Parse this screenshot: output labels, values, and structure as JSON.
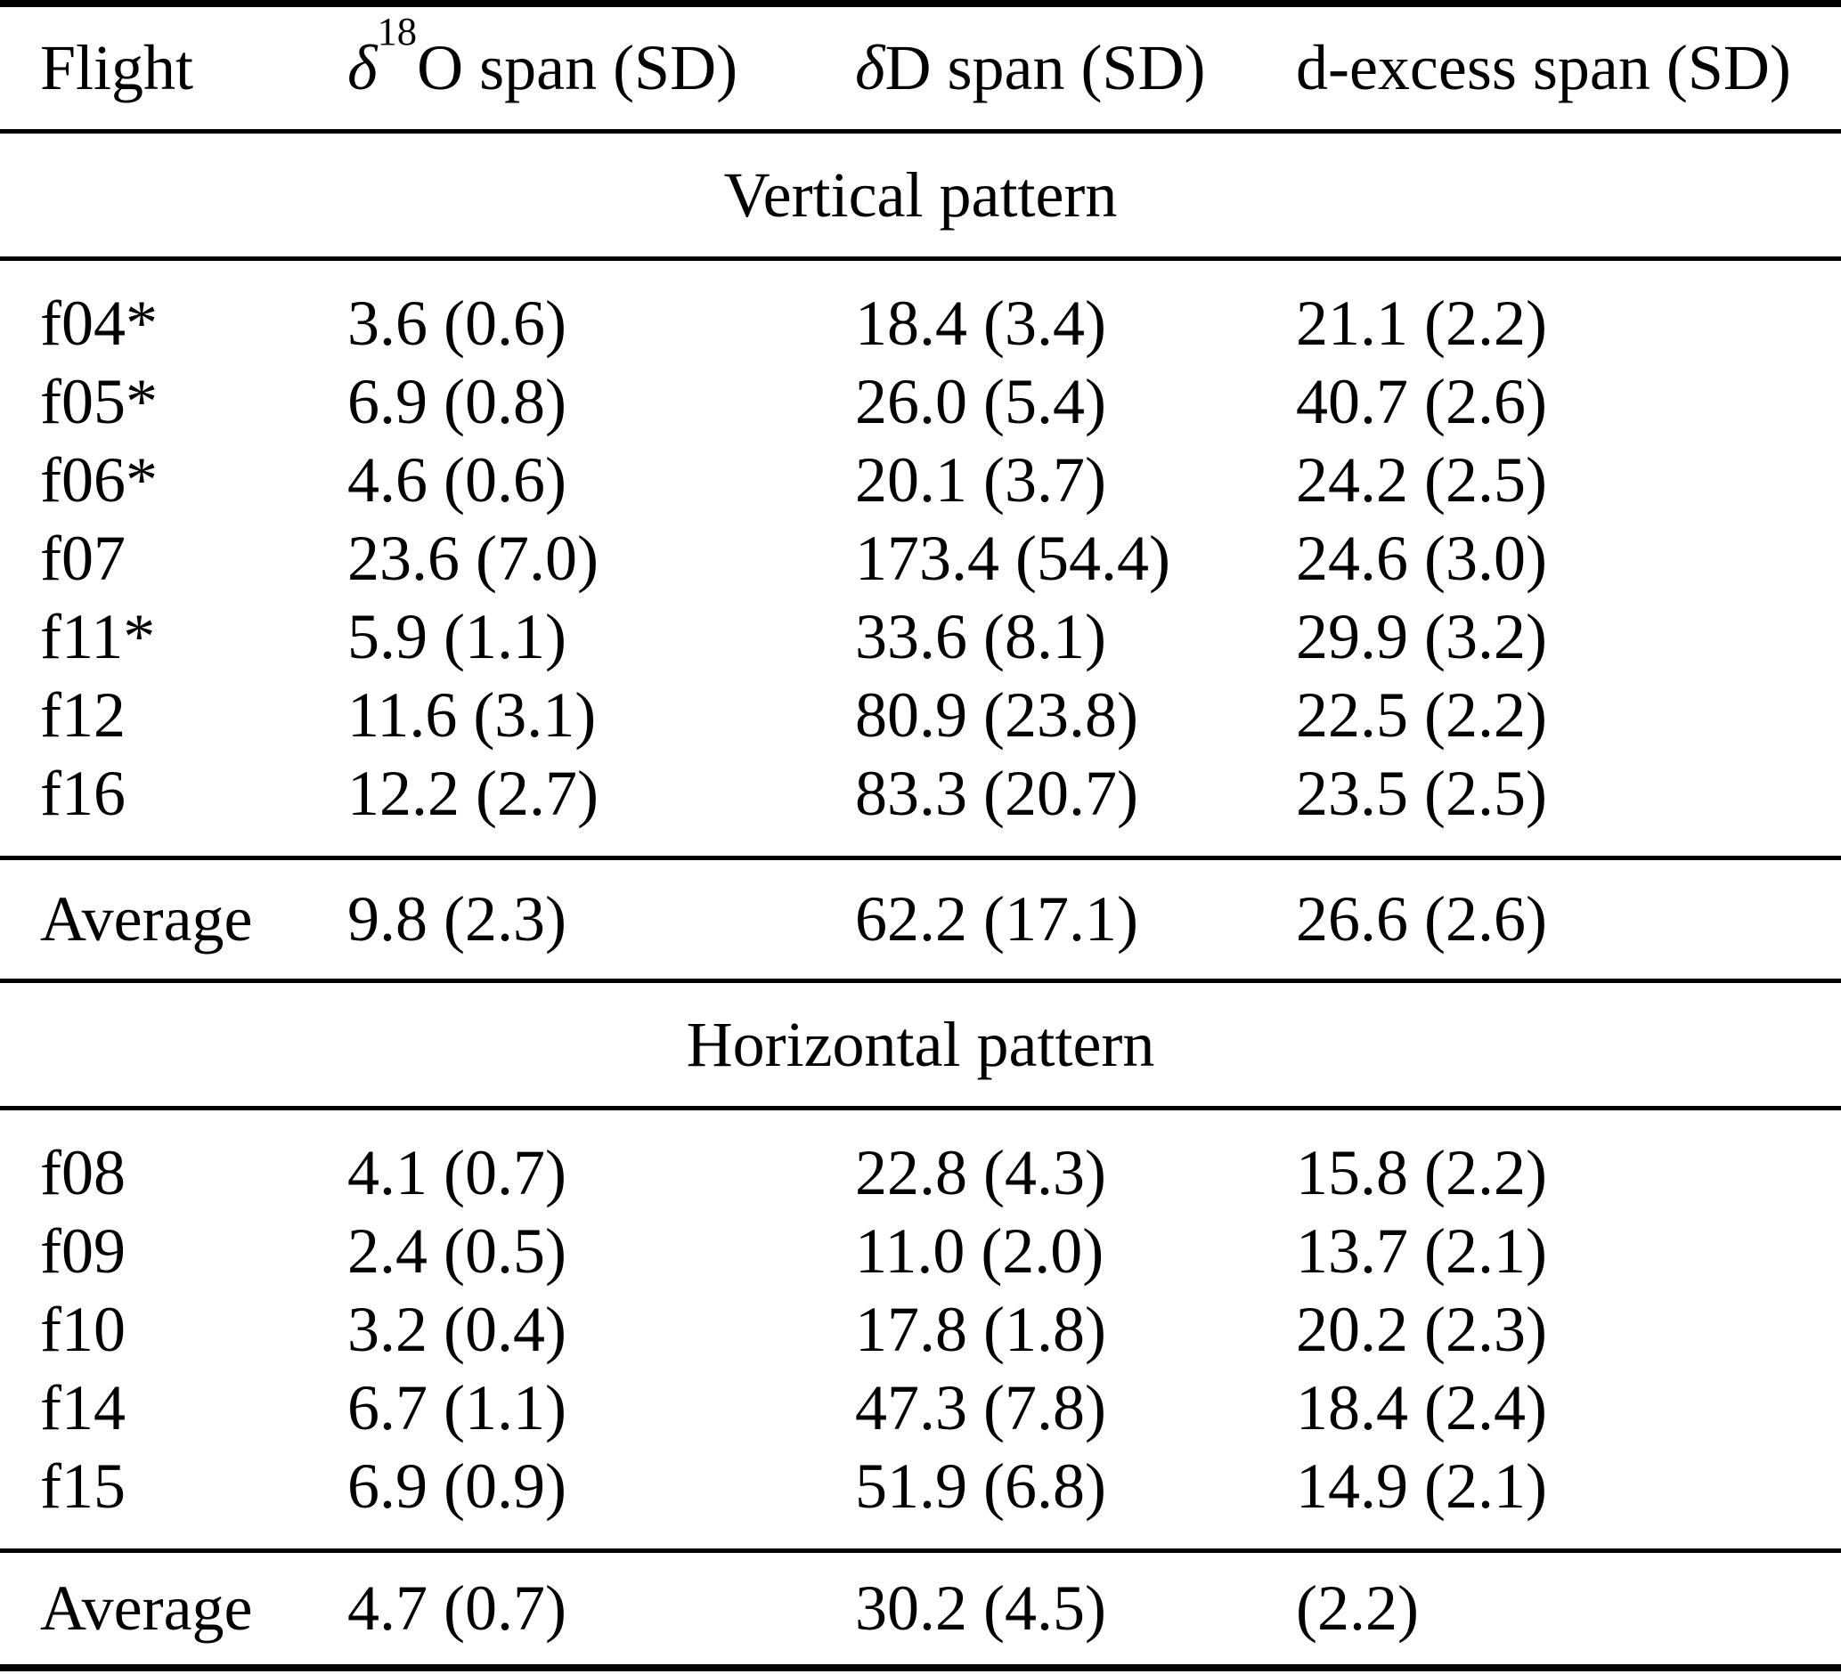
{
  "table": {
    "columns": {
      "flight": "Flight",
      "d18o": {
        "delta": "δ",
        "sup": "18",
        "rest": "O span (SD)"
      },
      "dd": {
        "delta": "δ",
        "rest": "D span (SD)"
      },
      "dexcess": "d-excess span (SD)"
    },
    "sections": [
      {
        "title": "Vertical pattern",
        "rows": [
          {
            "flight": "f04*",
            "d18o": "3.6 (0.6)",
            "dd": "18.4 (3.4)",
            "dexcess": "21.1 (2.2)"
          },
          {
            "flight": "f05*",
            "d18o": "6.9 (0.8)",
            "dd": "26.0 (5.4)",
            "dexcess": "40.7 (2.6)"
          },
          {
            "flight": "f06*",
            "d18o": "4.6 (0.6)",
            "dd": "20.1 (3.7)",
            "dexcess": "24.2 (2.5)"
          },
          {
            "flight": "f07",
            "d18o": "23.6 (7.0)",
            "dd": "173.4 (54.4)",
            "dexcess": "24.6 (3.0)"
          },
          {
            "flight": "f11*",
            "d18o": "5.9 (1.1)",
            "dd": "33.6 (8.1)",
            "dexcess": "29.9 (3.2)"
          },
          {
            "flight": "f12",
            "d18o": "11.6 (3.1)",
            "dd": "80.9 (23.8)",
            "dexcess": "22.5 (2.2)"
          },
          {
            "flight": "f16",
            "d18o": "12.2 (2.7)",
            "dd": "83.3 (20.7)",
            "dexcess": "23.5 (2.5)"
          }
        ],
        "average": {
          "label": "Average",
          "d18o": "9.8 (2.3)",
          "dd": "62.2 (17.1)",
          "dexcess": "26.6 (2.6)"
        }
      },
      {
        "title": "Horizontal pattern",
        "rows": [
          {
            "flight": "f08",
            "d18o": "4.1 (0.7)",
            "dd": "22.8 (4.3)",
            "dexcess": "15.8 (2.2)"
          },
          {
            "flight": "f09",
            "d18o": "2.4 (0.5)",
            "dd": "11.0 (2.0)",
            "dexcess": "13.7 (2.1)"
          },
          {
            "flight": "f10",
            "d18o": "3.2 (0.4)",
            "dd": "17.8 (1.8)",
            "dexcess": "20.2 (2.3)"
          },
          {
            "flight": "f14",
            "d18o": "6.7 (1.1)",
            "dd": "47.3 (7.8)",
            "dexcess": "18.4 (2.4)"
          },
          {
            "flight": "f15",
            "d18o": "6.9 (0.9)",
            "dd": "51.9 (6.8)",
            "dexcess": "14.9 (2.1)"
          }
        ],
        "average": {
          "label": "Average",
          "d18o": "4.7 (0.7)",
          "dd": "30.2 (4.5)",
          "dexcess": "(2.2)"
        }
      }
    ]
  }
}
